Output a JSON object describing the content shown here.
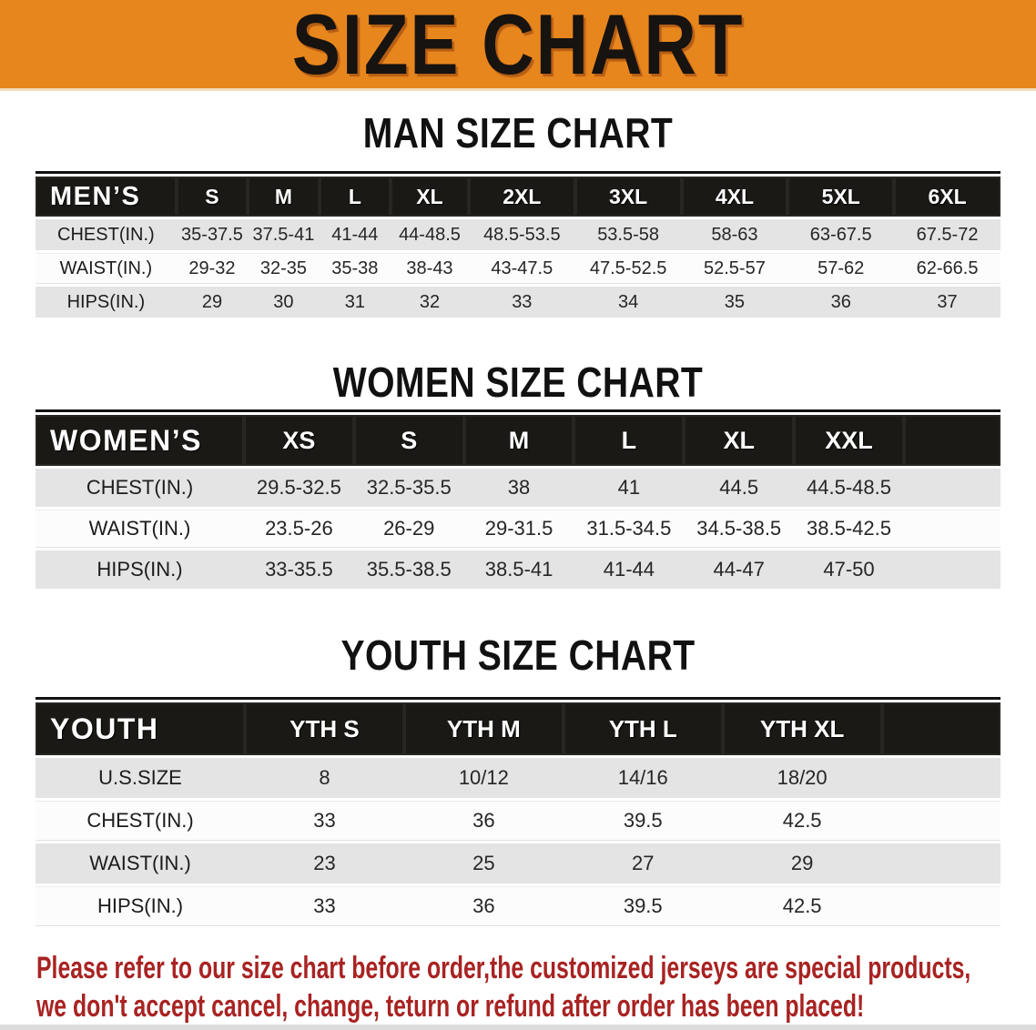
{
  "banner": {
    "title": "SIZE CHART"
  },
  "colors": {
    "banner_bg": "#E8861E",
    "table_head_bg": "#1B1916",
    "row_gray": "#E4E4E4",
    "note_red": "#A82322"
  },
  "sections": [
    {
      "heading": "MAN SIZE CHART",
      "table": {
        "label": "MEN’S",
        "columns": [
          "S",
          "M",
          "L",
          "XL",
          "2XL",
          "3XL",
          "4XL",
          "5XL",
          "6XL"
        ],
        "rows": [
          {
            "label": "CHEST(IN.)",
            "values": [
              "35-37.5",
              "37.5-41",
              "41-44",
              "44-48.5",
              "48.5-53.5",
              "53.5-58",
              "58-63",
              "63-67.5",
              "67.5-72"
            ]
          },
          {
            "label": "WAIST(IN.)",
            "values": [
              "29-32",
              "32-35",
              "35-38",
              "38-43",
              "43-47.5",
              "47.5-52.5",
              "52.5-57",
              "57-62",
              "62-66.5"
            ]
          },
          {
            "label": "HIPS(IN.)",
            "values": [
              "29",
              "30",
              "31",
              "32",
              "33",
              "34",
              "35",
              "36",
              "37"
            ]
          }
        ]
      }
    },
    {
      "heading": "WOMEN SIZE CHART",
      "table": {
        "label": "WOMEN’S",
        "columns": [
          "XS",
          "S",
          "M",
          "L",
          "XL",
          "XXL"
        ],
        "rows": [
          {
            "label": "CHEST(IN.)",
            "values": [
              "29.5-32.5",
              "32.5-35.5",
              "38",
              "41",
              "44.5",
              "44.5-48.5"
            ]
          },
          {
            "label": "WAIST(IN.)",
            "values": [
              "23.5-26",
              "26-29",
              "29-31.5",
              "31.5-34.5",
              "34.5-38.5",
              "38.5-42.5"
            ]
          },
          {
            "label": "HIPS(IN.)",
            "values": [
              "33-35.5",
              "35.5-38.5",
              "38.5-41",
              "41-44",
              "44-47",
              "47-50"
            ]
          }
        ]
      }
    },
    {
      "heading": "YOUTH SIZE CHART",
      "table": {
        "label": "YOUTH",
        "columns": [
          "YTH S",
          "YTH M",
          "YTH L",
          "YTH XL"
        ],
        "rows": [
          {
            "label": "U.S.SIZE",
            "values": [
              "8",
              "10/12",
              "14/16",
              "18/20"
            ]
          },
          {
            "label": "CHEST(IN.)",
            "values": [
              "33",
              "36",
              "39.5",
              "42.5"
            ]
          },
          {
            "label": "WAIST(IN.)",
            "values": [
              "23",
              "25",
              "27",
              "29"
            ]
          },
          {
            "label": "HIPS(IN.)",
            "values": [
              "33",
              "36",
              "39.5",
              "42.5"
            ]
          }
        ]
      }
    }
  ],
  "disclaimer": {
    "line1": "Please refer to our size chart before order,the customized jerseys are special products,",
    "line2": "we don't accept cancel, change, teturn or refund after order has been placed!"
  }
}
